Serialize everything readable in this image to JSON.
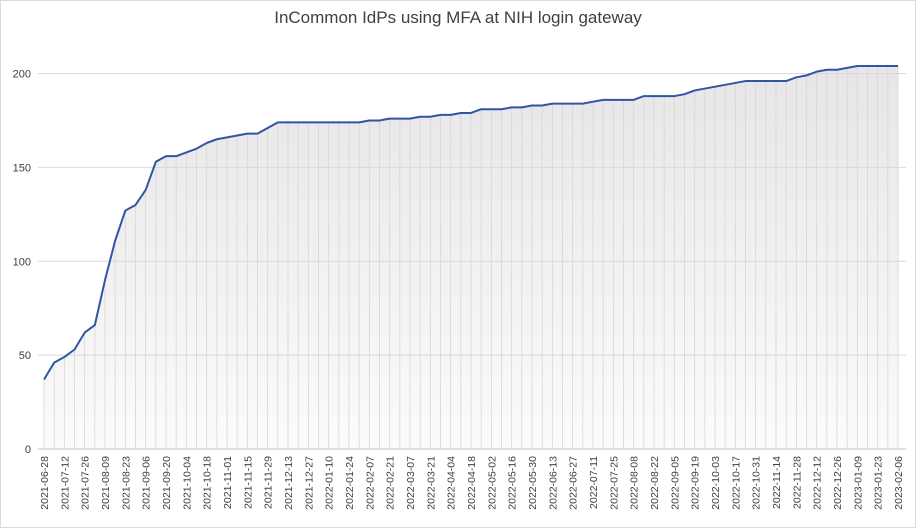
{
  "chart_data": {
    "type": "area",
    "title": "InCommon IdPs using MFA at NIH login gateway",
    "xlabel": "",
    "ylabel": "",
    "ylim": [
      0,
      220
    ],
    "yticks": [
      0,
      50,
      100,
      150,
      200
    ],
    "grid": true,
    "legend": "none",
    "line_color": "#2f55a4",
    "start_date": "2021-06-28",
    "interval_days": 7,
    "x_tick_every": 2,
    "values": [
      37,
      46,
      49,
      53,
      62,
      66,
      90,
      111,
      127,
      130,
      138,
      153,
      156,
      156,
      158,
      160,
      163,
      165,
      166,
      167,
      168,
      168,
      171,
      174,
      174,
      174,
      174,
      174,
      174,
      174,
      174,
      174,
      175,
      175,
      176,
      176,
      176,
      177,
      177,
      178,
      178,
      179,
      179,
      181,
      181,
      181,
      182,
      182,
      183,
      183,
      184,
      184,
      184,
      184,
      185,
      186,
      186,
      186,
      186,
      188,
      188,
      188,
      188,
      189,
      191,
      192,
      193,
      194,
      195,
      196,
      196,
      196,
      196,
      196,
      198,
      199,
      201,
      202,
      202,
      203,
      204,
      204,
      204,
      204,
      204
    ]
  }
}
